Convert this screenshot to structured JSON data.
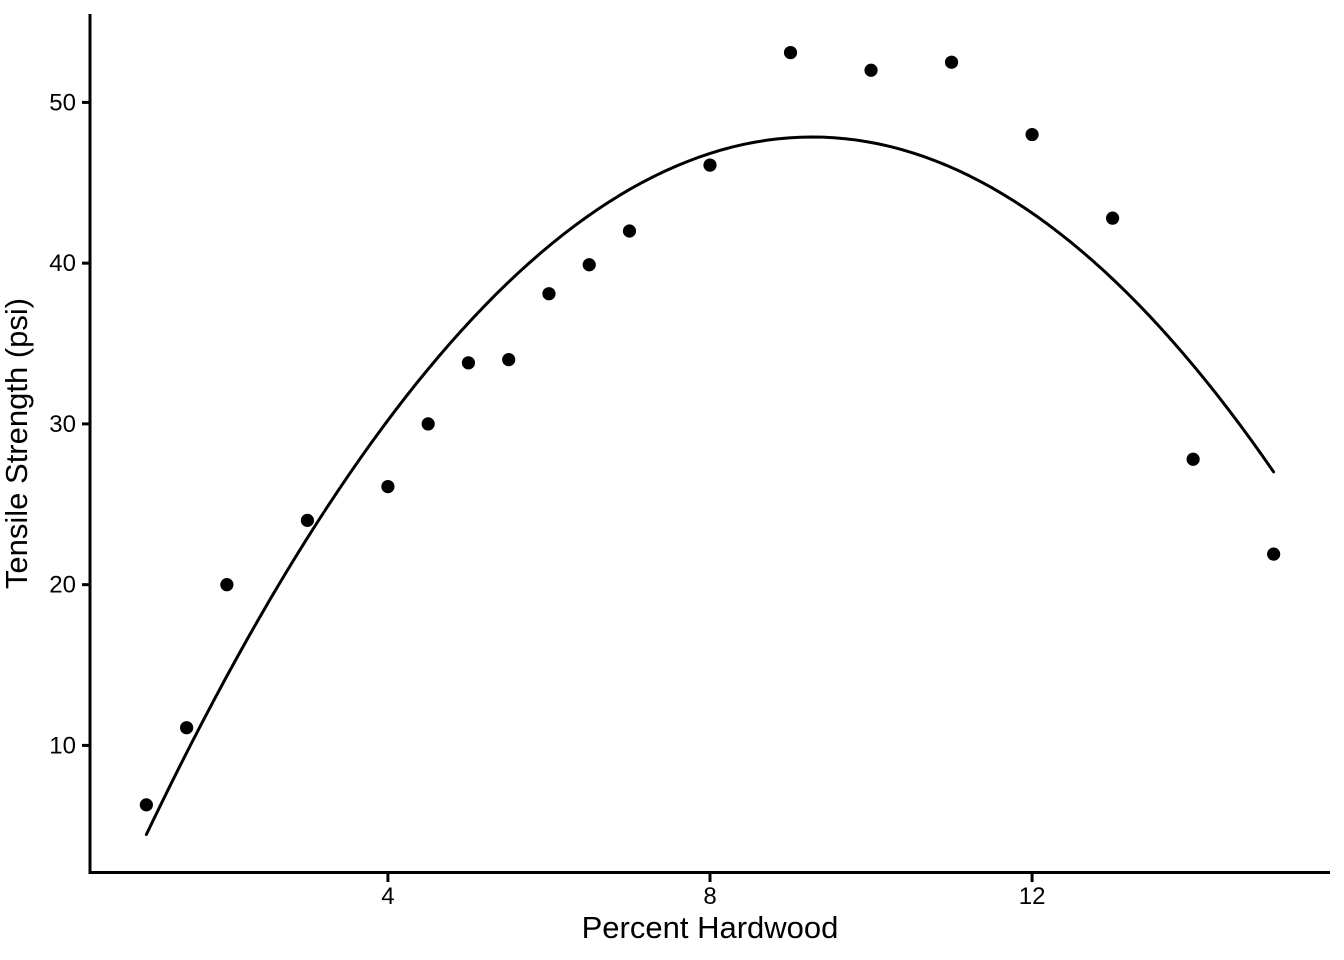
{
  "page": {
    "background": "#FFFFFF"
  },
  "chart_data": {
    "type": "scatter",
    "title": "",
    "xlabel": "Percent Hardwood",
    "ylabel": "Tensile Strength (psi)",
    "x": [
      1,
      1.5,
      2,
      3,
      4,
      4.5,
      5,
      5.5,
      6,
      6.5,
      7,
      8,
      9,
      10,
      11,
      12,
      13,
      14,
      15
    ],
    "y": [
      6.3,
      11.1,
      20.0,
      24.0,
      26.1,
      30.0,
      33.8,
      34.0,
      38.1,
      39.9,
      42.0,
      46.1,
      53.1,
      52.0,
      52.5,
      48.0,
      42.8,
      27.8,
      21.9
    ],
    "smooth_curve": {
      "kind": "quadratic-fit",
      "coefficients": {
        "intercept": -6.674,
        "x": 11.764,
        "x2": -0.63455
      },
      "x_start": 1,
      "x_end": 15
    },
    "x_ticks": [
      4,
      8,
      12
    ],
    "y_ticks": [
      10,
      20,
      30,
      40,
      50
    ],
    "xlim": [
      0.3,
      15.7
    ],
    "ylim": [
      2.0,
      55.5
    ],
    "grid": false,
    "legend": "none",
    "point_color": "#000000",
    "curve_color": "#000000",
    "axis_color": "#000000"
  }
}
